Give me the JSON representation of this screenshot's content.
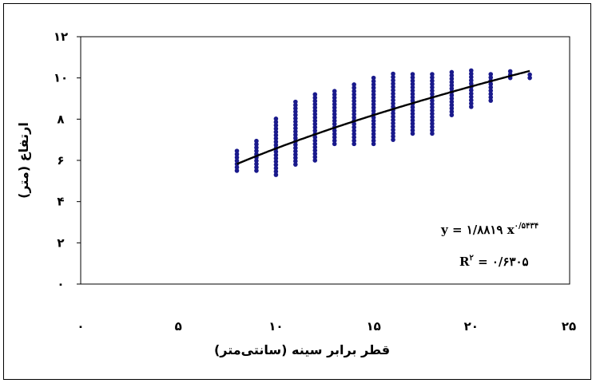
{
  "chart_data": {
    "type": "scatter",
    "title": "",
    "xlabel": "قطر برابر سینه (سانتی‌متر)",
    "ylabel": "ارتفاع (متر)",
    "xlim": [
      0,
      25
    ],
    "ylim": [
      0,
      12
    ],
    "x_ticks": [
      {
        "value": 0,
        "label": "۰"
      },
      {
        "value": 5,
        "label": "۵"
      },
      {
        "value": 10,
        "label": "۱۰"
      },
      {
        "value": 15,
        "label": "۱۵"
      },
      {
        "value": 20,
        "label": "۲۰"
      },
      {
        "value": 25,
        "label": "۲۵"
      }
    ],
    "y_ticks": [
      {
        "value": 0,
        "label": "۰"
      },
      {
        "value": 2,
        "label": "۲"
      },
      {
        "value": 4,
        "label": "۴"
      },
      {
        "value": 6,
        "label": "۶"
      },
      {
        "value": 8,
        "label": "۸"
      },
      {
        "value": 10,
        "label": "۱۰"
      },
      {
        "value": 12,
        "label": "۱۲"
      }
    ],
    "grid": false,
    "point_color": "#1a1a8c",
    "trendline": {
      "type": "power",
      "a": 1.8819,
      "b": 0.5434,
      "x_range": [
        8,
        23
      ],
      "color": "#000000",
      "equation_y": "y = ۱/۸۸۱۹ x",
      "equation_exp": "۰/۵۴۳۴",
      "r2_prefix": "R",
      "r2_sup": "۲",
      "r2_value": " = ۰/۶۳۰۵"
    },
    "point_columns": [
      {
        "x": 8,
        "ymin": 5.5,
        "ymax": 6.6
      },
      {
        "x": 9,
        "ymin": 5.5,
        "ymax": 7.0
      },
      {
        "x": 10,
        "ymin": 5.3,
        "ymax": 8.1
      },
      {
        "x": 11,
        "ymin": 5.8,
        "ymax": 8.9
      },
      {
        "x": 12,
        "ymin": 6.0,
        "ymax": 9.3
      },
      {
        "x": 13,
        "ymin": 6.8,
        "ymax": 9.4
      },
      {
        "x": 14,
        "ymin": 6.8,
        "ymax": 9.8
      },
      {
        "x": 15,
        "ymin": 6.8,
        "ymax": 10.1
      },
      {
        "x": 16,
        "ymin": 7.0,
        "ymax": 10.2
      },
      {
        "x": 17,
        "ymin": 7.3,
        "ymax": 10.2
      },
      {
        "x": 18,
        "ymin": 7.3,
        "ymax": 10.2
      },
      {
        "x": 19,
        "ymin": 8.2,
        "ymax": 10.3
      },
      {
        "x": 20,
        "ymin": 8.6,
        "ymax": 10.5
      },
      {
        "x": 21,
        "ymin": 8.9,
        "ymax": 10.3
      },
      {
        "x": 22,
        "ymin": 10.0,
        "ymax": 10.4
      },
      {
        "x": 23,
        "ymin": 10.0,
        "ymax": 10.3
      }
    ]
  }
}
